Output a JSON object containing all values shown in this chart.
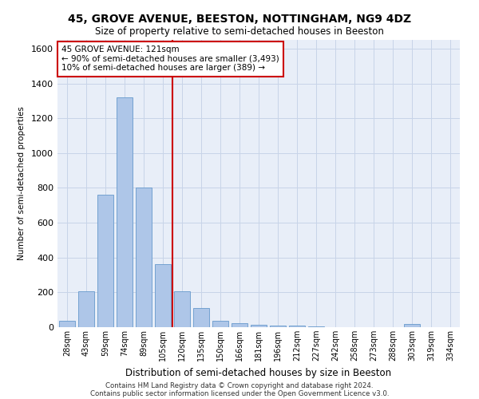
{
  "title": "45, GROVE AVENUE, BEESTON, NOTTINGHAM, NG9 4DZ",
  "subtitle": "Size of property relative to semi-detached houses in Beeston",
  "xlabel": "Distribution of semi-detached houses by size in Beeston",
  "ylabel": "Number of semi-detached properties",
  "footer_line1": "Contains HM Land Registry data © Crown copyright and database right 2024.",
  "footer_line2": "Contains public sector information licensed under the Open Government Licence v3.0.",
  "annotation_title": "45 GROVE AVENUE: 121sqm",
  "annotation_line2": "← 90% of semi-detached houses are smaller (3,493)",
  "annotation_line3": "10% of semi-detached houses are larger (389) →",
  "bar_color": "#aec6e8",
  "bar_edge_color": "#6699cc",
  "highlight_line_color": "#cc0000",
  "annotation_box_color": "#ffffff",
  "annotation_box_edge": "#cc0000",
  "background_color": "#ffffff",
  "plot_bg_color": "#e8eef8",
  "grid_color": "#c8d4e8",
  "categories": [
    "28sqm",
    "43sqm",
    "59sqm",
    "74sqm",
    "89sqm",
    "105sqm",
    "120sqm",
    "135sqm",
    "150sqm",
    "166sqm",
    "181sqm",
    "196sqm",
    "212sqm",
    "227sqm",
    "242sqm",
    "258sqm",
    "273sqm",
    "288sqm",
    "303sqm",
    "319sqm",
    "334sqm"
  ],
  "values": [
    35,
    205,
    760,
    1320,
    800,
    360,
    205,
    108,
    38,
    22,
    15,
    10,
    8,
    3,
    0,
    0,
    0,
    0,
    20,
    0,
    0
  ],
  "property_line_index": 6,
  "ylim": [
    0,
    1650
  ],
  "yticks": [
    0,
    200,
    400,
    600,
    800,
    1000,
    1200,
    1400,
    1600
  ]
}
